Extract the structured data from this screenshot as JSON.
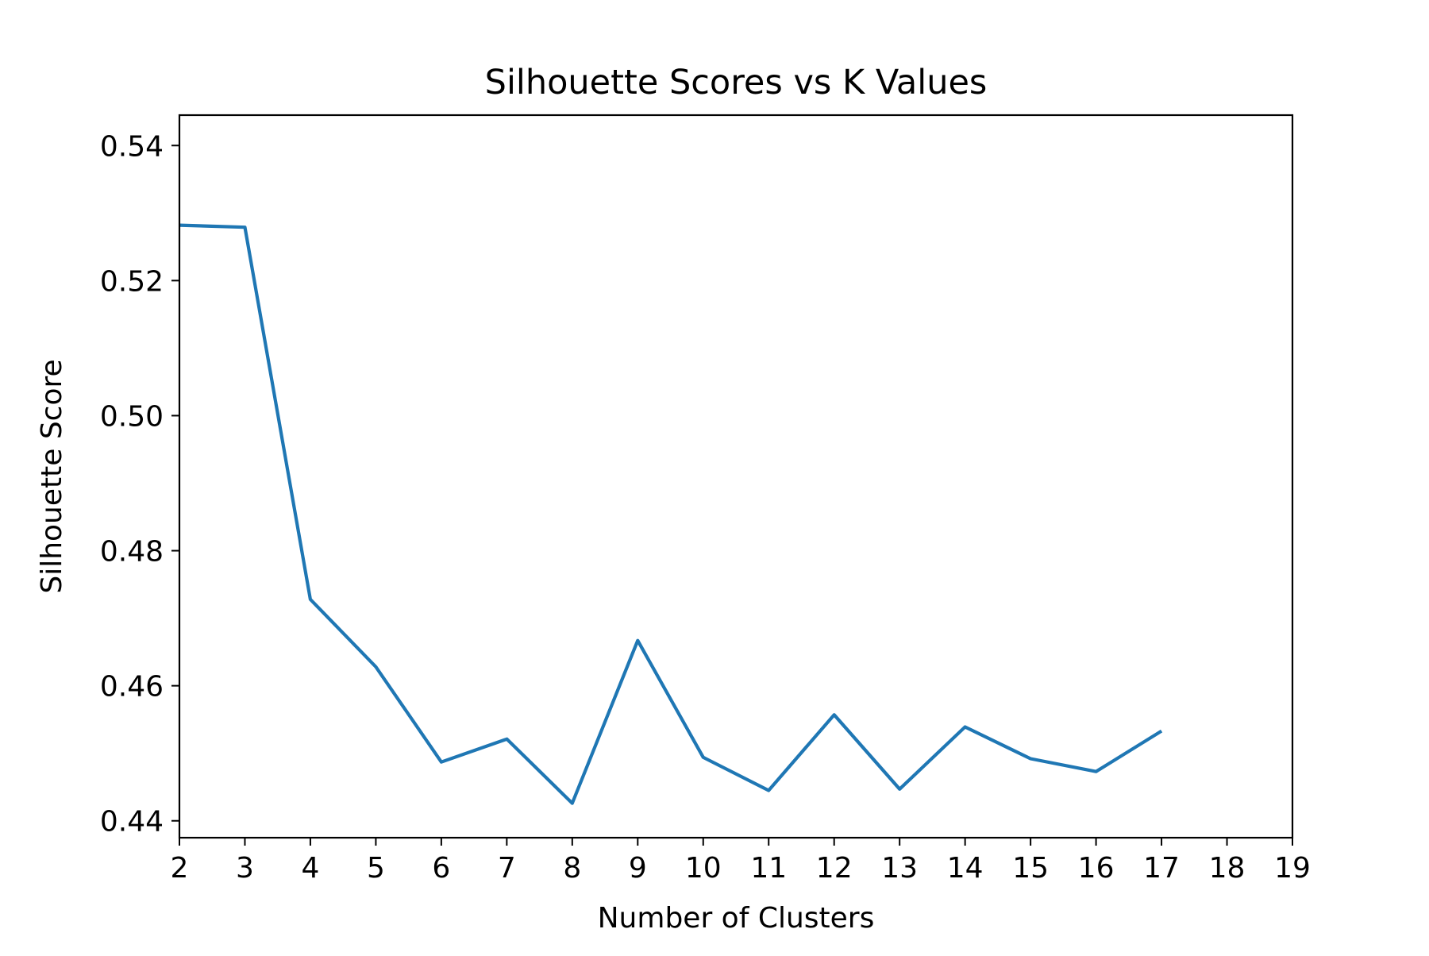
{
  "chart_data": {
    "type": "line",
    "title": "Silhouette Scores vs K Values",
    "xlabel": "Number of Clusters",
    "ylabel": "Silhouette Score",
    "xlim": [
      2,
      19
    ],
    "ylim": [
      0.4375,
      0.5445
    ],
    "x_ticks": [
      "2",
      "3",
      "4",
      "5",
      "6",
      "7",
      "8",
      "9",
      "10",
      "11",
      "12",
      "13",
      "14",
      "15",
      "16",
      "17",
      "18",
      "19"
    ],
    "y_ticks": [
      "0.44",
      "0.46",
      "0.48",
      "0.50",
      "0.52",
      "0.54"
    ],
    "grid": false,
    "series_color": "#1f77b4",
    "series": [
      {
        "x": [
          2,
          3,
          4,
          5,
          6,
          7,
          8,
          9,
          10,
          11,
          12,
          13,
          14,
          15,
          16,
          17
        ],
        "values": [
          0.5282,
          0.5279,
          0.4728,
          0.4628,
          0.4487,
          0.4521,
          0.4426,
          0.4667,
          0.4494,
          0.4445,
          0.4557,
          0.4447,
          0.4539,
          0.4492,
          0.4473,
          0.4533
        ]
      }
    ]
  }
}
